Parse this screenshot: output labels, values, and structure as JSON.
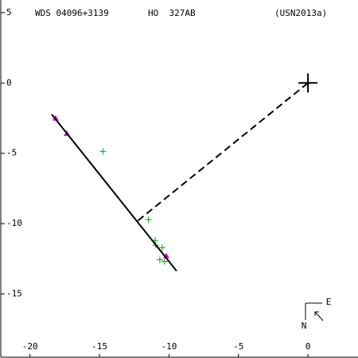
{
  "chart_data": {
    "type": "scatter",
    "header": {
      "left": "WDS 04096+3139",
      "center": "HO  327AB",
      "right": "(USN2013a)"
    },
    "compass": {
      "east": "E",
      "north": "N"
    },
    "xlim": [
      -22.1,
      3.6
    ],
    "ylim": [
      -19.5,
      5.9
    ],
    "xticks": [
      -20,
      -15,
      -10,
      -5,
      0
    ],
    "yticks": [
      5,
      0,
      -5,
      -10,
      -15
    ],
    "series": [
      {
        "color": "#00a000",
        "marker": "plus",
        "x": [
          -14.75,
          -11.47,
          -11.0,
          -10.95,
          -10.49,
          -10.66,
          -10.32
        ],
        "values": [
          -4.86,
          -9.71,
          -11.2,
          -11.54,
          -11.71,
          -12.57,
          -12.69
        ]
      },
      {
        "color": "#e000e0",
        "marker": "triangle",
        "x": [
          -18.16,
          -17.35,
          -10.2
        ],
        "values": [
          -2.51,
          -3.6,
          -12.29
        ]
      },
      {
        "color": "#000000",
        "marker": "line",
        "dash": false,
        "x": [
          -18.44,
          -9.45
        ],
        "values": [
          -2.23,
          -13.37
        ]
      },
      {
        "color": "#000000",
        "marker": "line",
        "dash": true,
        "x": [
          0,
          -12.28
        ],
        "values": [
          0,
          -9.83
        ]
      },
      {
        "color": "#000000",
        "marker": "star",
        "x": [
          0
        ],
        "values": [
          0
        ]
      }
    ]
  }
}
